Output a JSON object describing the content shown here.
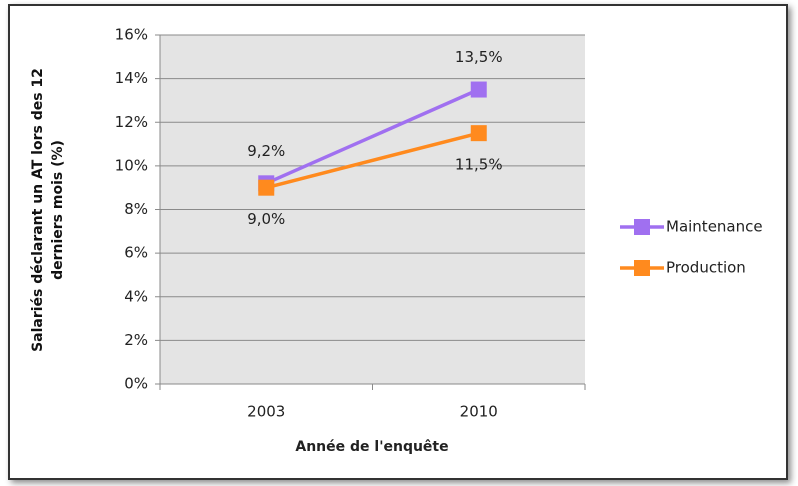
{
  "chart_data": {
    "type": "line",
    "y_axis_label": "Salariés déclarant un AT lors des 12 derniers mois (%)",
    "x_axis_label": "Année de l'enquête",
    "categories": [
      "2003",
      "2010"
    ],
    "series": [
      {
        "name": "Maintenance",
        "color": "#a070f0",
        "values": [
          9.2,
          13.5
        ],
        "value_labels": [
          "9,2%",
          "13,5%"
        ]
      },
      {
        "name": "Production",
        "color": "#ff8a1e",
        "values": [
          9.0,
          11.5
        ],
        "value_labels": [
          "9,0%",
          "11,5%"
        ]
      }
    ],
    "ylim": [
      0,
      16
    ],
    "yticks": [
      {
        "value": 0,
        "label": "0%"
      },
      {
        "value": 2,
        "label": "2%"
      },
      {
        "value": 4,
        "label": "4%"
      },
      {
        "value": 6,
        "label": "6%"
      },
      {
        "value": 8,
        "label": "8%"
      },
      {
        "value": 10,
        "label": "10%"
      },
      {
        "value": 12,
        "label": "12%"
      },
      {
        "value": 14,
        "label": "14%"
      },
      {
        "value": 16,
        "label": "16%"
      }
    ],
    "grid": true,
    "legend": "right"
  }
}
